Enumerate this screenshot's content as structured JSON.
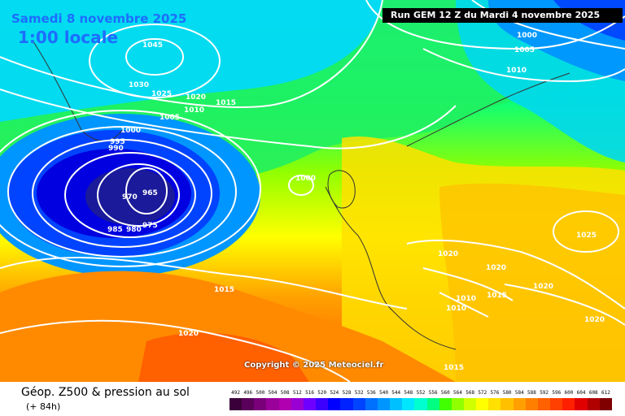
{
  "header": {
    "date": "Samedi 8 novembre 2025",
    "local_time": "1:00 locale",
    "run": "Run GEM 12 Z du Mardi 4 novembre 2025"
  },
  "copyright": "Copyright © 2025 Meteociel.fr",
  "footer": {
    "title": "Géop. Z500 & pression au sol",
    "subtitle": "(+ 84h)"
  },
  "isobar_labels": [
    "1045",
    "1030",
    "1025",
    "1020",
    "1015",
    "1010",
    "1005",
    "1000",
    "995",
    "990",
    "970",
    "965",
    "975",
    "980",
    "985",
    "1000",
    "1015",
    "1020",
    "1000",
    "1005",
    "1010",
    "1025",
    "1020",
    "1020",
    "1020",
    "1010",
    "1010",
    "1015",
    "1020",
    "1015"
  ],
  "scale": {
    "labels": [
      "492",
      "496",
      "500",
      "504",
      "508",
      "512",
      "516",
      "520",
      "524",
      "528",
      "532",
      "536",
      "540",
      "544",
      "548",
      "552",
      "556",
      "560",
      "564",
      "568",
      "572",
      "576",
      "580",
      "584",
      "588",
      "592",
      "596",
      "600",
      "604",
      "608",
      "612"
    ],
    "colors": [
      "#3a003a",
      "#5a005a",
      "#7a007a",
      "#9a009a",
      "#b000b0",
      "#9a00d4",
      "#6e00ff",
      "#3c00ff",
      "#0000ff",
      "#0022ff",
      "#0044ff",
      "#0070ff",
      "#0096ff",
      "#00c0ff",
      "#00e6ff",
      "#00ffd0",
      "#00ff80",
      "#40ff00",
      "#90ff00",
      "#d0ff00",
      "#ffff00",
      "#ffe000",
      "#ffc000",
      "#ffa000",
      "#ff8000",
      "#ff6000",
      "#ff4000",
      "#ff2000",
      "#e00000",
      "#b00000",
      "#800000"
    ]
  }
}
